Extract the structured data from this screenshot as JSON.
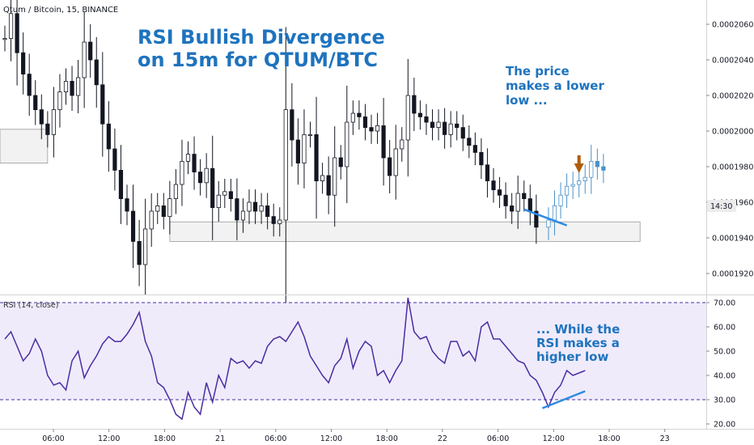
{
  "header": {
    "symbol_text": "Qtum / Bitcoin, 15, BINANCE"
  },
  "annotations": {
    "title_lines": [
      "RSI Bullish Divergence",
      "on 15m for QTUM/BTC"
    ],
    "price_note_lines": [
      "The price",
      "makes a lower",
      "low ..."
    ],
    "rsi_note_lines": [
      "... While the",
      "RSI makes a",
      "higher low"
    ]
  },
  "price_badge": "14:30",
  "colors": {
    "candle": "#131722",
    "candle_projection": "#4a90c8",
    "rsi_line": "#4b2ca0",
    "rsi_band_fill": "#efebfb",
    "rsi_band_lines": "#4b2ca0",
    "divergence_line": "#2e8be0",
    "arrow": "#b05c0a",
    "zone_fill": "#f2f2f2",
    "zone_border": "#9a9a9a",
    "annotation_text": "#1e73be"
  },
  "chart_data": [
    {
      "type": "candlestick",
      "title": "Qtum / Bitcoin, 15, BINANCE",
      "y_ticks": [
        "0.0001920",
        "0.0001940",
        "0.0001960",
        "0.0001980",
        "0.0002000",
        "0.0002020",
        "0.0002040",
        "0.0002060"
      ],
      "ylim": [
        0.000191,
        0.000207
      ],
      "x_ticks": [
        "06:00",
        "12:00",
        "18:00",
        "21",
        "06:00",
        "12:00",
        "18:00",
        "22",
        "06:00",
        "12:00",
        "18:00",
        "23"
      ],
      "close_series": [
        0.0002052,
        0.0002066,
        0.0002044,
        0.0002032,
        0.000202,
        0.0002012,
        0.0002004,
        0.0001998,
        0.0002012,
        0.0002022,
        0.0002028,
        0.000202,
        0.000203,
        0.000205,
        0.000204,
        0.0002026,
        0.0002004,
        0.000199,
        0.0001978,
        0.0001962,
        0.0001955,
        0.0001938,
        0.0001925,
        0.0001945,
        0.0001955,
        0.0001958,
        0.0001952,
        0.0001962,
        0.000197,
        0.0001983,
        0.0001987,
        0.0001977,
        0.0001971,
        0.0001979,
        0.0001957,
        0.0001964,
        0.0001966,
        0.0001962,
        0.000195,
        0.0001955,
        0.000196,
        0.0001955,
        0.0001958,
        0.0001952,
        0.0001948,
        0.000195,
        0.0002012,
        0.0001995,
        0.0001982,
        0.0001998,
        0.0001998,
        0.0001972,
        0.0001975,
        0.0001964,
        0.0001985,
        0.000198,
        0.0002005,
        0.000201,
        0.0002008,
        0.0002002,
        0.0002,
        0.0002003,
        0.0001985,
        0.0001975,
        0.000199,
        0.0001995,
        0.000202,
        0.000201,
        0.0002008,
        0.0002005,
        0.0002002,
        0.0002005,
        0.0001998,
        0.0002004,
        0.0002002,
        0.0001996,
        0.0001992,
        0.0001988,
        0.0001981,
        0.0001972,
        0.0001967,
        0.0001964,
        0.0001958,
        0.0001955,
        0.0001965,
        0.0001962,
        0.0001955,
        0.0001946
      ],
      "projection_series": [
        0.000195,
        0.0001958,
        0.0001964,
        0.0001969,
        0.000197,
        0.0001972,
        0.0001974,
        0.0001983,
        0.000198,
        0.0001978
      ],
      "zones": [
        {
          "from_index": 0,
          "to_index": 7,
          "low": 0.0001982,
          "high": 0.0002001
        },
        {
          "from_index": 27,
          "to_index": 104,
          "low": 0.0001938,
          "high": 0.0001949
        }
      ],
      "divergence_line": {
        "from": [
          85,
          0.0001956
        ],
        "to": [
          92,
          0.0001947
        ]
      },
      "arrow_index": 94
    },
    {
      "type": "line",
      "title": "RSI (14, close)",
      "y_ticks": [
        "20.00",
        "30.00",
        "40.00",
        "50.00",
        "60.00",
        "70.00"
      ],
      "ylim": [
        18,
        72
      ],
      "band": [
        30,
        70
      ],
      "series": [
        {
          "values": [
            55,
            58,
            52,
            46,
            49,
            55,
            50,
            40,
            36,
            37,
            34,
            46,
            50,
            39,
            44,
            48,
            53,
            56,
            54,
            54,
            57,
            61,
            66,
            54,
            48,
            37,
            35,
            30,
            24,
            22,
            33,
            27,
            24,
            37,
            29,
            40,
            35,
            47,
            45,
            46,
            43,
            46,
            45,
            52,
            55,
            56,
            54,
            58,
            62,
            56,
            48,
            44,
            40,
            37,
            44,
            47,
            55,
            43,
            50,
            54,
            52,
            40,
            42,
            37,
            42,
            46,
            72,
            58,
            55,
            56,
            50,
            47,
            45,
            54,
            54,
            48,
            50,
            46,
            60,
            62,
            55,
            55,
            52,
            49,
            46,
            45,
            40,
            38,
            33,
            27,
            33,
            36,
            42,
            40,
            41,
            42
          ]
        }
      ],
      "divergence_line": {
        "from": [
          88,
          26.5
        ],
        "to": [
          95,
          33.5
        ]
      }
    }
  ]
}
